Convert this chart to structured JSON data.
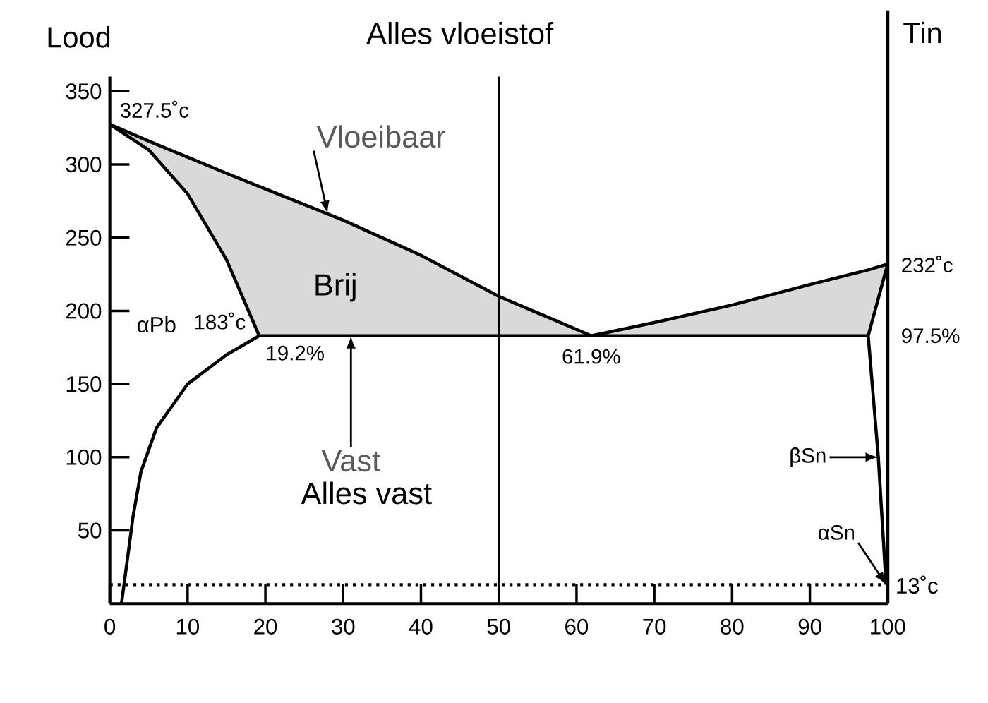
{
  "chart_data": {
    "type": "line",
    "ylabel": "Lood",
    "xlim": [
      0,
      100
    ],
    "ylim": [
      0,
      360
    ],
    "xticks": [
      0,
      10,
      20,
      30,
      40,
      50,
      60,
      70,
      80,
      90,
      100
    ],
    "yticks": [
      50,
      100,
      150,
      200,
      250,
      300,
      350
    ],
    "grid": false,
    "series": [
      {
        "color": "#000000",
        "x": [
          0,
          5,
          10,
          15,
          19.2,
          30,
          40,
          50,
          61.9,
          70,
          80,
          90,
          97.5,
          100
        ],
        "values": [
          327.5,
          316,
          305,
          294,
          285,
          262,
          238,
          210,
          183,
          192,
          204,
          218,
          228,
          232
        ],
        "lower": [
          327.5,
          310,
          280,
          235,
          183,
          183,
          183,
          183,
          183,
          183,
          183,
          183,
          183,
          232
        ],
        "upper": [
          327.5,
          316,
          305,
          294,
          285,
          262,
          238,
          210,
          183,
          192,
          204,
          218,
          228,
          232
        ]
      },
      {
        "color": "#000000",
        "x": [
          0,
          5,
          10,
          15,
          19.2
        ],
        "values": [
          327.5,
          310,
          280,
          235,
          183
        ]
      },
      {
        "color": "#000000",
        "x": [
          19.2,
          15,
          10,
          6,
          4,
          3,
          1.5
        ],
        "values": [
          183,
          170,
          150,
          120,
          90,
          60,
          0
        ]
      },
      {
        "color": "#000000",
        "x": [
          19.2,
          97.5
        ],
        "values": [
          183,
          183
        ]
      },
      {
        "color": "#000000",
        "x": [
          99.8,
          98.8,
          97.5,
          100
        ],
        "values": [
          13,
          100,
          183,
          232
        ]
      }
    ],
    "ref_lines": [
      {
        "axis": "y",
        "value": 13,
        "label": "13˚c",
        "line_style": "dotted"
      },
      {
        "axis": "x",
        "value": 50
      },
      {
        "axis": "x",
        "value": 100,
        "label": "Tin"
      }
    ],
    "annotations": [
      "Alles vloeistof",
      {
        "text": "327.5˚c",
        "x": 0,
        "y": 327.5
      },
      {
        "text": "183˚c",
        "x": 19.2,
        "y": 183
      },
      {
        "text": "19.2%",
        "x": 19.2,
        "y": 183
      },
      {
        "text": "61.9%",
        "x": 61.9,
        "y": 183
      },
      {
        "text": "232˚c",
        "x": 100,
        "y": 232
      },
      {
        "text": "97.5%",
        "x": 100,
        "y": 183
      },
      {
        "text": "Vloeibaar",
        "x": 28,
        "y": 266.6
      },
      {
        "text": "Vast",
        "x": 31,
        "y": 183
      },
      {
        "text": "βSn",
        "x": 98.8,
        "y": 100
      },
      {
        "text": "αSn",
        "x": 99.8,
        "y": 13
      },
      "Brij",
      "αPb",
      "Alles vast"
    ]
  }
}
